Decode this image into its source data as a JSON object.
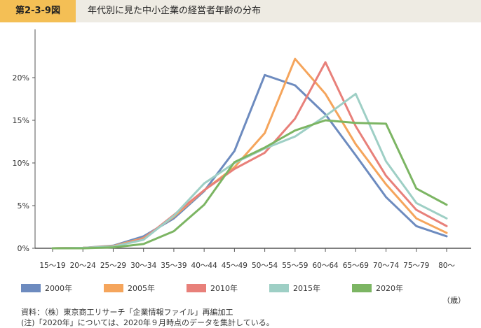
{
  "figure": {
    "label": "第2-3-9図",
    "title": "年代別に見た中小企業の経営者年齢の分布"
  },
  "colors": {
    "title_bar_bg": "#eeebe3",
    "label_bg": "#f4bf55"
  },
  "chart_data": {
    "type": "line",
    "categories": [
      "15～19",
      "20～24",
      "25～29",
      "30～34",
      "35～39",
      "40～44",
      "45～49",
      "50～54",
      "55～59",
      "60～64",
      "65～69",
      "70～74",
      "75～79",
      "80～"
    ],
    "x_unit": "（歳）",
    "ylim": [
      0,
      25
    ],
    "yticks": [
      0,
      5,
      10,
      15,
      20
    ],
    "ytick_labels": [
      "0%",
      "5%",
      "10%",
      "15%",
      "20%"
    ],
    "grid": false,
    "legend_position": "bottom",
    "series": [
      {
        "name": "2000年",
        "color": "#6d8bbf",
        "values": [
          0.0,
          0.05,
          0.3,
          1.4,
          3.5,
          6.7,
          11.4,
          20.3,
          19.1,
          15.7,
          10.9,
          6.0,
          2.6,
          1.4
        ]
      },
      {
        "name": "2005年",
        "color": "#f5a55c",
        "values": [
          0.0,
          0.05,
          0.25,
          1.2,
          3.7,
          6.8,
          9.5,
          13.5,
          22.2,
          18.1,
          12.2,
          7.5,
          3.5,
          1.8
        ]
      },
      {
        "name": "2010年",
        "color": "#e8807a",
        "values": [
          0.0,
          0.05,
          0.2,
          1.1,
          3.9,
          6.8,
          9.3,
          11.2,
          15.2,
          21.8,
          14.3,
          8.5,
          4.5,
          2.6
        ]
      },
      {
        "name": "2015年",
        "color": "#9ecfc5",
        "values": [
          0.0,
          0.05,
          0.2,
          1.0,
          3.8,
          7.6,
          10.0,
          11.7,
          13.1,
          15.5,
          18.1,
          10.2,
          5.3,
          3.5
        ]
      },
      {
        "name": "2020年",
        "color": "#7cb563",
        "values": [
          0.0,
          0.0,
          0.1,
          0.5,
          2.0,
          5.1,
          10.1,
          11.8,
          13.8,
          15.0,
          14.7,
          14.6,
          7.0,
          5.1
        ]
      }
    ]
  },
  "notes": {
    "source": "資料：（株）東京商工リサーチ「企業情報ファイル」再編加工",
    "note": "(注)「2020年」については、2020年９月時点のデータを集計している。"
  }
}
